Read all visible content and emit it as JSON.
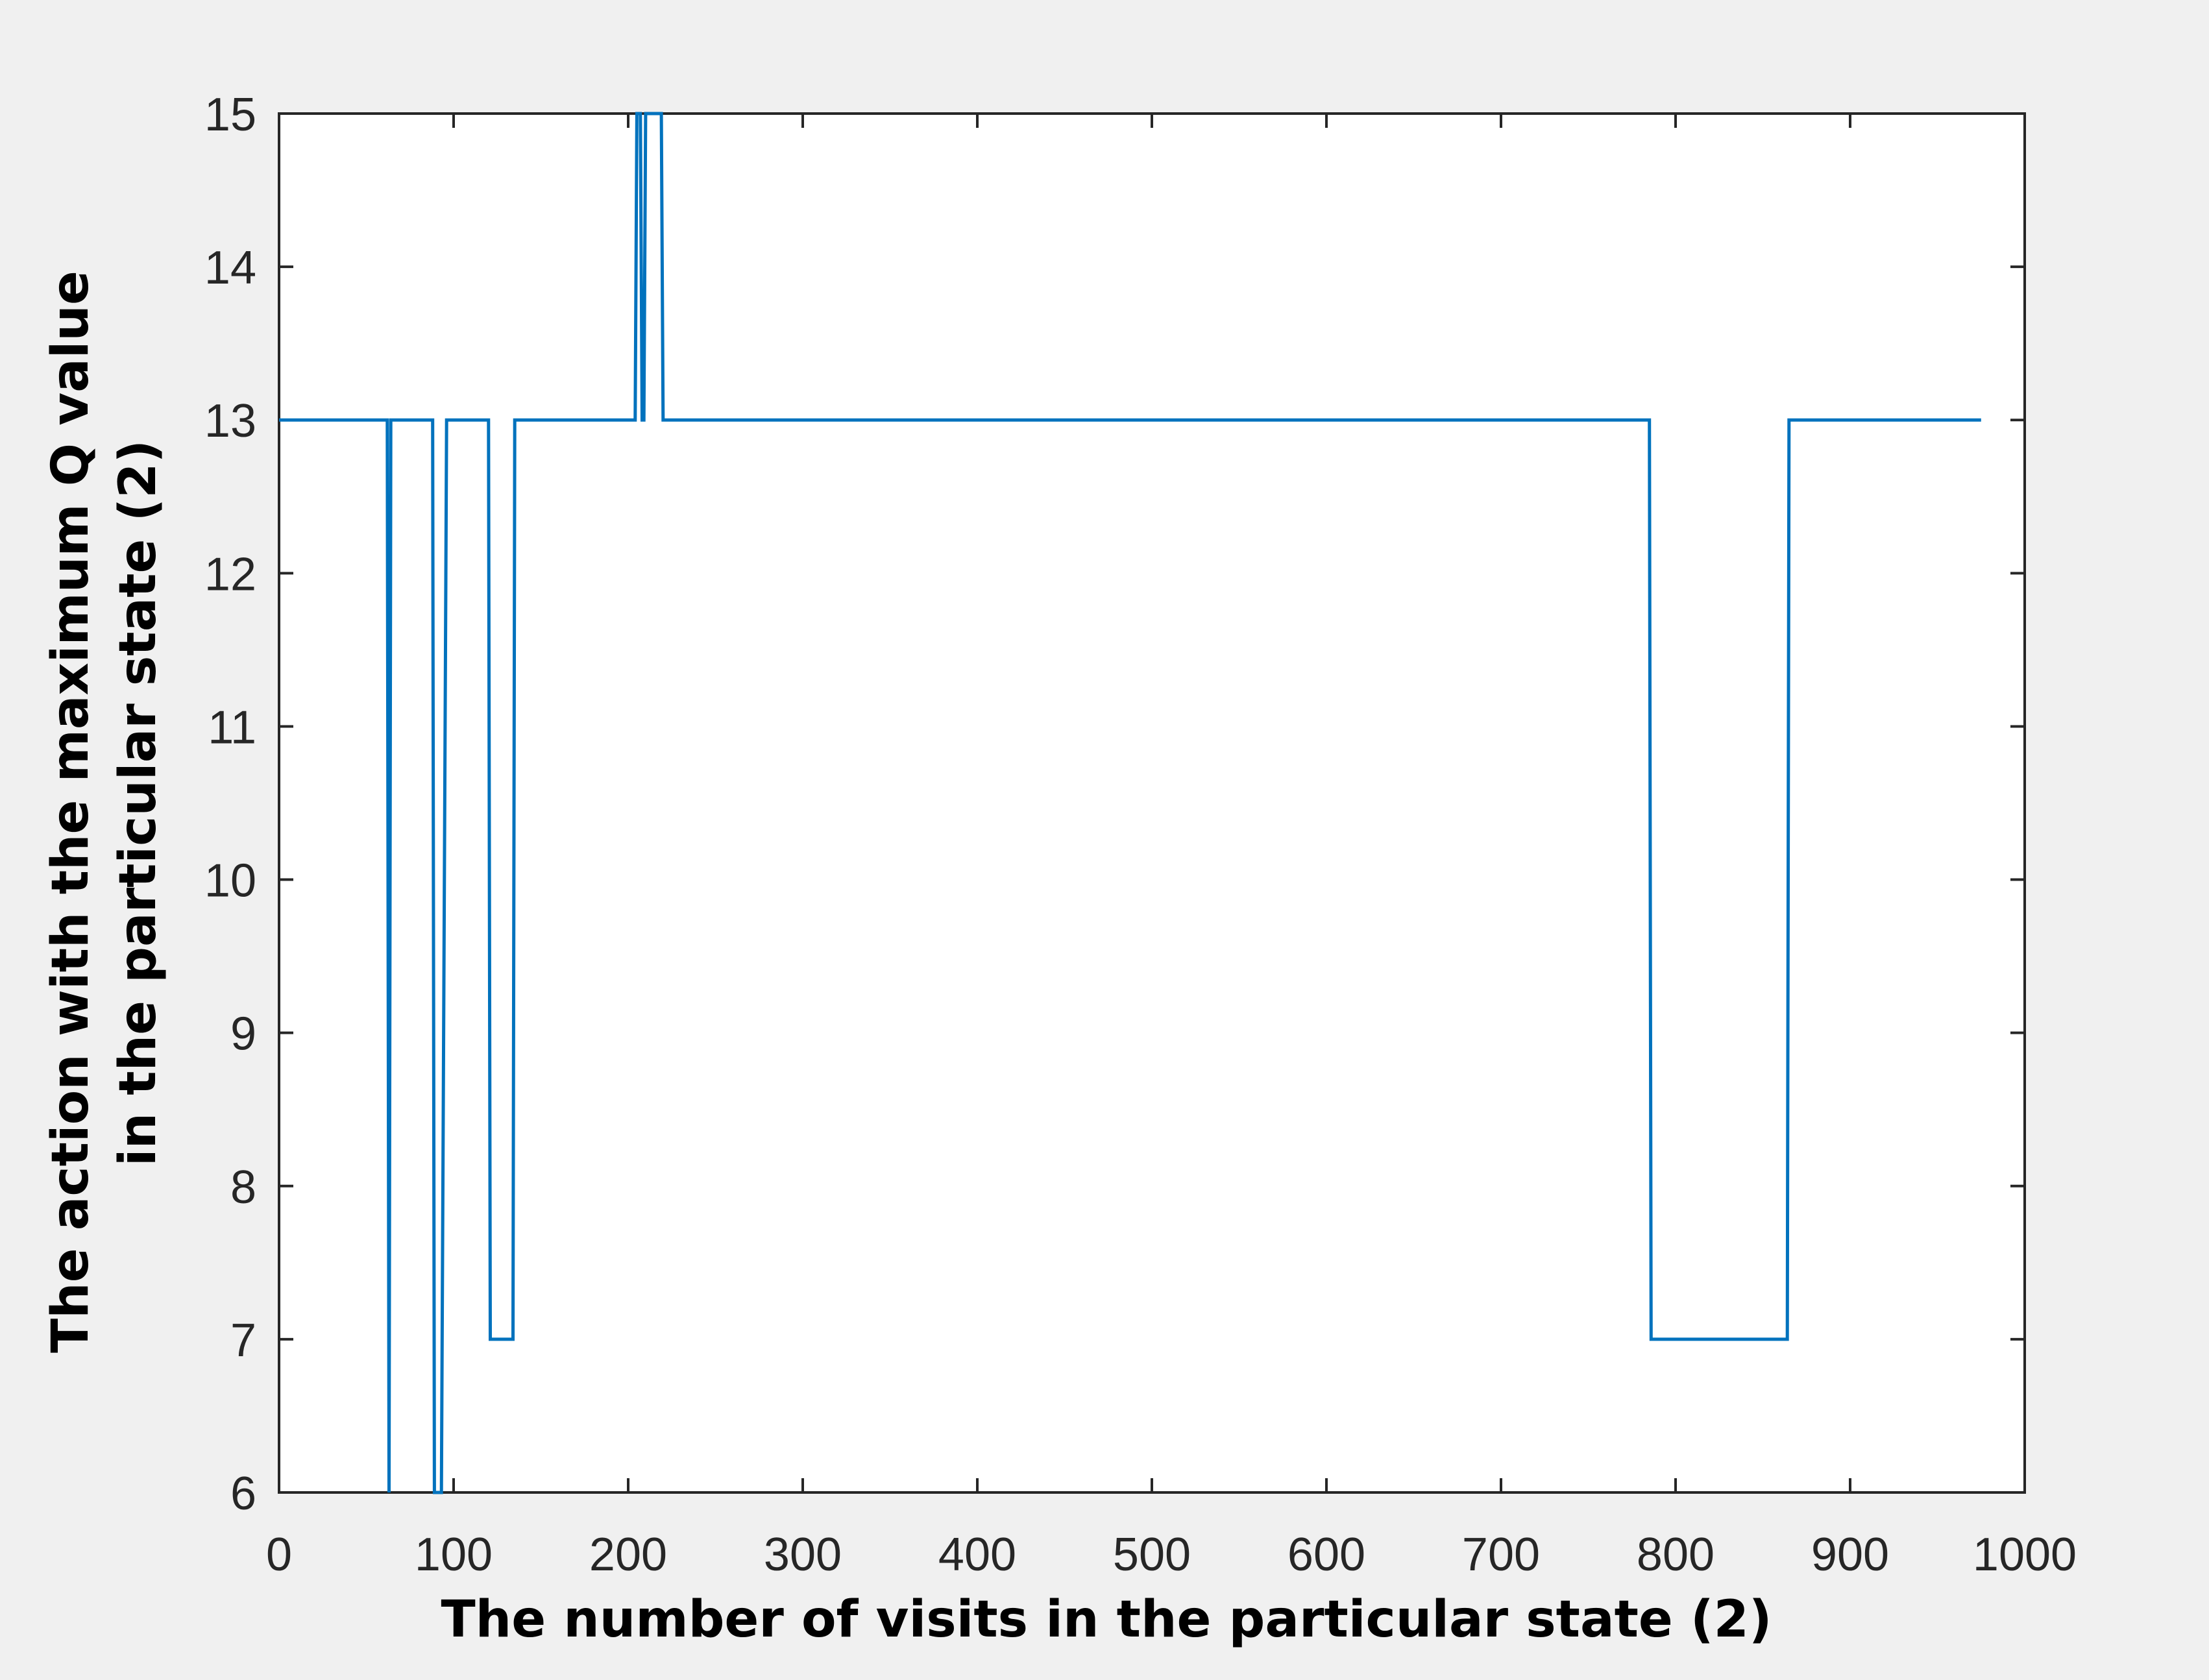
{
  "chart_data": {
    "type": "line",
    "title": "",
    "xlabel": "The number of visits in the particular state (2)",
    "ylabel_lines": [
      "The action with the maximum Q value",
      "in the particular state (2)"
    ],
    "xlim": [
      0,
      1000
    ],
    "ylim": [
      6,
      15
    ],
    "x_ticks": [
      0,
      100,
      200,
      300,
      400,
      500,
      600,
      700,
      800,
      900,
      1000
    ],
    "y_ticks": [
      6,
      7,
      8,
      9,
      10,
      11,
      12,
      13,
      14,
      15
    ],
    "grid": false,
    "legend": "none",
    "colors": {
      "series": "#0072BD",
      "axes": "#262626",
      "plot_bg": "#ffffff",
      "figure_bg": "#f0f0f0"
    },
    "series": [
      {
        "x": [
          0,
          62,
          63,
          64,
          65,
          88,
          89,
          92,
          93,
          96,
          97,
          120,
          121,
          134,
          135,
          204,
          205,
          207,
          208,
          209,
          210,
          212,
          213,
          219,
          220,
          222,
          223,
          785,
          786,
          800,
          864,
          865,
          975
        ],
        "y": [
          13,
          13,
          6,
          13,
          13,
          13,
          6,
          6,
          6,
          13,
          13,
          13,
          7,
          7,
          13,
          13,
          15,
          15,
          13,
          13,
          15,
          15,
          15,
          15,
          13,
          13,
          13,
          13,
          7,
          7,
          7,
          13,
          13
        ]
      }
    ]
  }
}
